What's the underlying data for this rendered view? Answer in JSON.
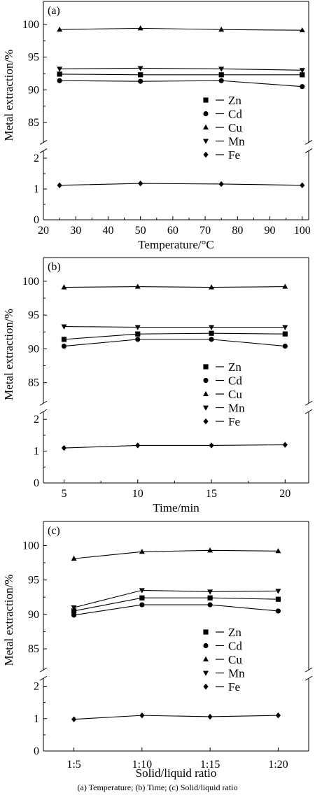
{
  "caption": "(a) Temperature; (b) Time; (c) Solid/liquid ratio",
  "chart_data": [
    {
      "type": "line",
      "panel_label": "(a)",
      "xlabel": "Temperature/°C",
      "ylabel": "Metal extraction/%",
      "x_kind": "numeric",
      "x": [
        25,
        50,
        75,
        100
      ],
      "xticks": [
        "20",
        "30",
        "40",
        "50",
        "60",
        "70",
        "80",
        "90",
        "100"
      ],
      "xtick_values": [
        20,
        30,
        40,
        50,
        60,
        70,
        80,
        90,
        100
      ],
      "xlim": [
        20,
        102
      ],
      "y_upper_ticks": [
        "85",
        "90",
        "95",
        "100"
      ],
      "y_lower_ticks": [
        "0",
        "1",
        "2"
      ],
      "axis_break": true,
      "legend": [
        "Zn",
        "Cd",
        "Cu",
        "Mn",
        "Fe"
      ],
      "series": [
        {
          "name": "Zn",
          "marker": "square",
          "values": [
            92.4,
            92.3,
            92.3,
            92.3
          ]
        },
        {
          "name": "Cd",
          "marker": "circle",
          "values": [
            91.4,
            91.3,
            91.4,
            90.5
          ]
        },
        {
          "name": "Cu",
          "marker": "triangle-up",
          "values": [
            99.2,
            99.4,
            99.2,
            99.1
          ]
        },
        {
          "name": "Mn",
          "marker": "triangle-down",
          "values": [
            93.2,
            93.3,
            93.2,
            93.0
          ]
        },
        {
          "name": "Fe",
          "marker": "diamond",
          "values": [
            1.12,
            1.18,
            1.16,
            1.12
          ]
        }
      ]
    },
    {
      "type": "line",
      "panel_label": "(b)",
      "xlabel": "Time/min",
      "ylabel": "Metal extraction/%",
      "x_kind": "numeric",
      "x": [
        5,
        10,
        15,
        20
      ],
      "xticks": [
        "5",
        "10",
        "15",
        "20"
      ],
      "xtick_values": [
        5,
        10,
        15,
        20
      ],
      "xlim": [
        3.6,
        21.6
      ],
      "y_upper_ticks": [
        "85",
        "90",
        "95",
        "100"
      ],
      "y_lower_ticks": [
        "0",
        "1",
        "2"
      ],
      "axis_break": true,
      "legend": [
        "Zn",
        "Cd",
        "Cu",
        "Mn",
        "Fe"
      ],
      "series": [
        {
          "name": "Zn",
          "marker": "square",
          "values": [
            91.4,
            92.2,
            92.3,
            92.2
          ]
        },
        {
          "name": "Cd",
          "marker": "circle",
          "values": [
            90.4,
            91.4,
            91.4,
            90.4
          ]
        },
        {
          "name": "Cu",
          "marker": "triangle-up",
          "values": [
            99.1,
            99.2,
            99.1,
            99.2
          ]
        },
        {
          "name": "Mn",
          "marker": "triangle-down",
          "values": [
            93.3,
            93.2,
            93.2,
            93.2
          ]
        },
        {
          "name": "Fe",
          "marker": "diamond",
          "values": [
            1.1,
            1.18,
            1.18,
            1.2
          ]
        }
      ]
    },
    {
      "type": "line",
      "panel_label": "(c)",
      "xlabel": "Solid/liquid ratio",
      "ylabel": "Metal extraction/%",
      "x_kind": "categorical",
      "categories": [
        "1:5",
        "1:10",
        "1:15",
        "1:20"
      ],
      "y_upper_ticks": [
        "85",
        "90",
        "95",
        "100"
      ],
      "y_lower_ticks": [
        "0",
        "1",
        "2"
      ],
      "axis_break": true,
      "legend": [
        "Zn",
        "Cd",
        "Cu",
        "Mn",
        "Fe"
      ],
      "series": [
        {
          "name": "Zn",
          "marker": "square",
          "values": [
            90.5,
            92.4,
            92.4,
            92.2
          ]
        },
        {
          "name": "Cd",
          "marker": "circle",
          "values": [
            89.9,
            91.4,
            91.4,
            90.5
          ]
        },
        {
          "name": "Cu",
          "marker": "triangle-up",
          "values": [
            98.1,
            99.1,
            99.3,
            99.2
          ]
        },
        {
          "name": "Mn",
          "marker": "triangle-down",
          "values": [
            91.0,
            93.5,
            93.3,
            93.4
          ]
        },
        {
          "name": "Fe",
          "marker": "diamond",
          "values": [
            0.98,
            1.1,
            1.06,
            1.1
          ]
        }
      ]
    }
  ]
}
